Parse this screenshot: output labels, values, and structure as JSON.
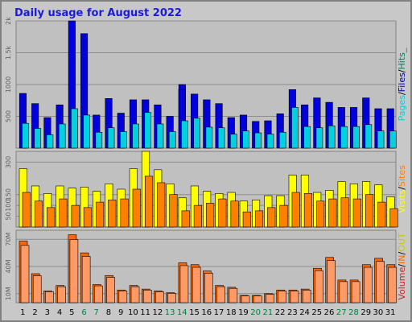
{
  "chart_data": {
    "type": "bar",
    "title": "Daily usage for August 2022",
    "categories": [
      "1",
      "2",
      "3",
      "4",
      "5",
      "6",
      "7",
      "8",
      "9",
      "10",
      "11",
      "12",
      "13",
      "14",
      "15",
      "16",
      "17",
      "18",
      "19",
      "20",
      "21",
      "22",
      "23",
      "24",
      "25",
      "26",
      "27",
      "28",
      "29",
      "30",
      "31"
    ],
    "weekend_days": [
      "6",
      "7",
      "13",
      "14",
      "20",
      "21",
      "27",
      "28"
    ],
    "colors": {
      "hits": "#0000dd",
      "files": "#0000aa",
      "pages": "#00d0e0",
      "visits": "#ffff00",
      "sites": "#ff8000",
      "kbytes_in": "#ff9966",
      "kbytes_out": "#ff6600",
      "volume": "#cc2222",
      "weekday_label": "#000000",
      "weekend_label": "#008040",
      "max_hits": "#008060"
    },
    "panels": [
      {
        "id": "hits",
        "ylim": [
          0,
          2000
        ],
        "ticks": [
          {
            "value": 500,
            "label": "500"
          },
          {
            "value": 1000,
            "label": "1000"
          },
          {
            "value": 1500,
            "label": "1.5k"
          },
          {
            "value": 2000,
            "label": "2k"
          }
        ],
        "right_label": [
          "Pages",
          "/",
          "Files",
          "/",
          "Hits_"
        ],
        "series": [
          {
            "name": "Hits",
            "values": [
              860,
              700,
              480,
              680,
              2000,
              1800,
              520,
              780,
              550,
              760,
              760,
              680,
              500,
              1000,
              850,
              760,
              700,
              480,
              520,
              420,
              430,
              540,
              920,
              680,
              790,
              720,
              640,
              640,
              790,
              620,
              620
            ]
          },
          {
            "name": "Files",
            "values": [
              0,
              0,
              0,
              0,
              0,
              0,
              0,
              0,
              0,
              0,
              0,
              0,
              0,
              920,
              0,
              0,
              0,
              0,
              0,
              0,
              0,
              0,
              0,
              0,
              0,
              0,
              0,
              0,
              0,
              0,
              0
            ]
          },
          {
            "name": "Pages",
            "values": [
              390,
              310,
              210,
              380,
              620,
              520,
              250,
              320,
              260,
              380,
              560,
              380,
              260,
              430,
              470,
              330,
              320,
              220,
              270,
              240,
              220,
              250,
              640,
              340,
              320,
              350,
              340,
              340,
              370,
              270,
              270
            ]
          }
        ]
      },
      {
        "id": "visits",
        "ylim": [
          0,
          350
        ],
        "ticks": [
          {
            "value": 50,
            "label": "50"
          },
          {
            "value": 100,
            "label": "100"
          },
          {
            "value": 150,
            "label": "150"
          },
          {
            "value": 300,
            "label": "300"
          }
        ],
        "right_label": [
          "Visits",
          "/",
          "Sites"
        ],
        "series": [
          {
            "name": "Visits",
            "values": [
              270,
              190,
              155,
              190,
              180,
              185,
              165,
              200,
              175,
              270,
              350,
              265,
              200,
              135,
              190,
              165,
              155,
              160,
              120,
              125,
              145,
              145,
              240,
              240,
              160,
              170,
              210,
              200,
              210,
              195,
              140
            ]
          },
          {
            "name": "Sites",
            "values": [
              160,
              120,
              90,
              130,
              100,
              90,
              115,
              125,
              130,
              175,
              235,
              205,
              150,
              75,
              100,
              110,
              130,
              120,
              70,
              75,
              90,
              100,
              160,
              155,
              120,
              130,
              135,
              130,
              150,
              115,
              85
            ]
          }
        ]
      },
      {
        "id": "volume",
        "ylim": [
          0,
          80
        ],
        "ticks": [
          {
            "value": 10,
            "label": "10M"
          },
          {
            "value": 40,
            "label": "40M"
          },
          {
            "value": 70,
            "label": "70M"
          }
        ],
        "right_label": [
          "Volume",
          "/",
          "IN",
          "/",
          "OUT"
        ],
        "series": [
          {
            "name": "KBytes",
            "values": [
              68,
              32,
              13,
              19,
              75,
              55,
              20,
              30,
              14,
              19,
              15,
              13,
              11,
              44,
              42,
              35,
              19,
              17,
              8,
              8,
              10,
              14,
              14,
              15,
              38,
              50,
              25,
              25,
              42,
              49,
              42
            ]
          }
        ]
      }
    ]
  }
}
